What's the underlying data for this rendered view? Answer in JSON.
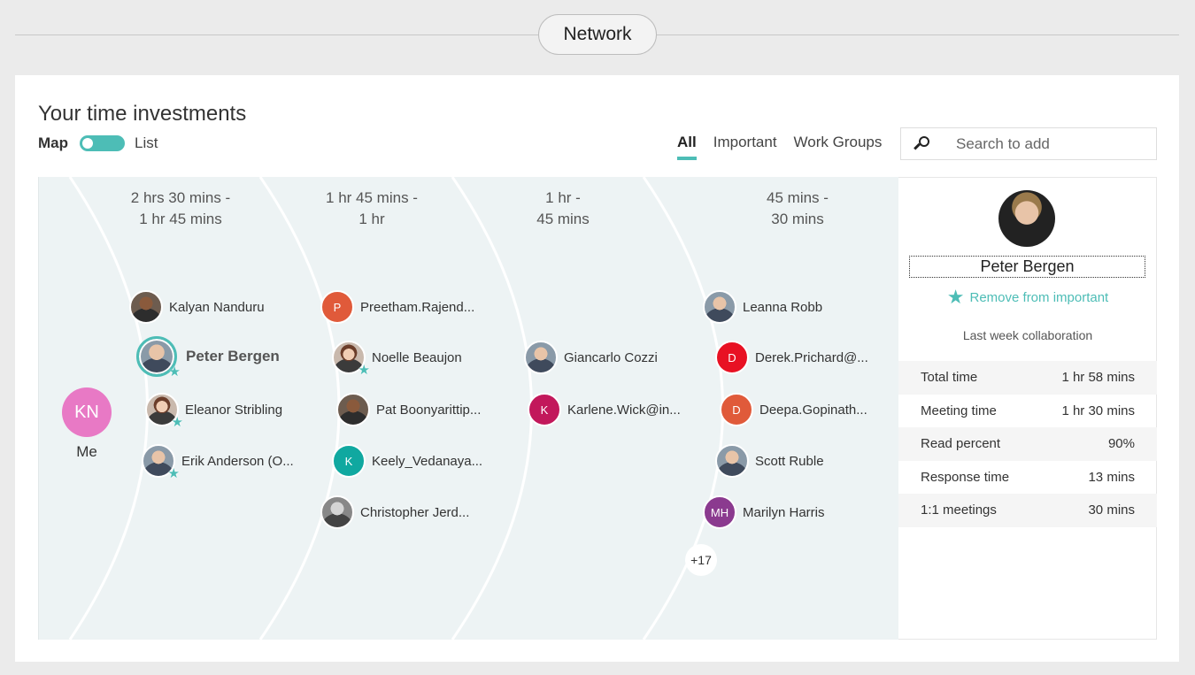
{
  "header": {
    "title": "Network"
  },
  "page": {
    "title": "Your time investments"
  },
  "view_toggle": {
    "map_label": "Map",
    "list_label": "List",
    "state": "map"
  },
  "tabs": [
    {
      "label": "All",
      "active": true
    },
    {
      "label": "Important",
      "active": false
    },
    {
      "label": "Work Groups",
      "active": false
    }
  ],
  "search": {
    "placeholder": "Search to add"
  },
  "bands": [
    {
      "line1": "2 hrs 30 mins -",
      "line2": "1 hr 45 mins"
    },
    {
      "line1": "1 hr 45 mins -",
      "line2": "1 hr"
    },
    {
      "line1": "1 hr -",
      "line2": "45 mins"
    },
    {
      "line1": "45 mins -",
      "line2": "30 mins"
    }
  ],
  "me": {
    "initials": "KN",
    "label": "Me",
    "color": "#e879c5"
  },
  "people": {
    "kalyan": {
      "name": "Kalyan Nanduru",
      "important": false
    },
    "peter": {
      "name": "Peter Bergen",
      "important": true,
      "selected": true
    },
    "eleanor": {
      "name": "Eleanor Stribling",
      "important": true
    },
    "erik": {
      "name": "Erik Anderson (O...",
      "important": true
    },
    "preetham": {
      "name": "Preetham.Rajend...",
      "initial": "P",
      "color": "#e05a3a"
    },
    "noelle": {
      "name": "Noelle Beaujon",
      "important": true
    },
    "pat": {
      "name": "Pat Boonyarittip..."
    },
    "keely": {
      "name": "Keely_Vedanaya...",
      "initial": "K",
      "color": "#10a8a0"
    },
    "christopher": {
      "name": "Christopher Jerd..."
    },
    "giancarlo": {
      "name": "Giancarlo Cozzi"
    },
    "karlene": {
      "name": "Karlene.Wick@in...",
      "initial": "K",
      "color": "#c2185b"
    },
    "leanna": {
      "name": "Leanna Robb"
    },
    "derek": {
      "name": "Derek.Prichard@...",
      "initial": "D",
      "color": "#e81123"
    },
    "deepa": {
      "name": "Deepa.Gopinath...",
      "initial": "D",
      "color": "#e05a3a"
    },
    "scott": {
      "name": "Scott Ruble"
    },
    "marilyn": {
      "name": "Marilyn Harris",
      "initial": "MH",
      "color": "#8b3a8f"
    }
  },
  "more_count": "+17",
  "detail": {
    "name": "Peter Bergen",
    "remove_important": "Remove from important",
    "collab_label": "Last week collaboration",
    "stats": [
      {
        "label": "Total time",
        "value": "1 hr 58 mins"
      },
      {
        "label": "Meeting time",
        "value": "1 hr 30 mins"
      },
      {
        "label": "Read percent",
        "value": "90%"
      },
      {
        "label": "Response time",
        "value": "13 mins"
      },
      {
        "label": "1:1 meetings",
        "value": "30 mins"
      }
    ]
  },
  "colors": {
    "accent": "#4dbdb6",
    "map_bg": "#edf3f4"
  }
}
